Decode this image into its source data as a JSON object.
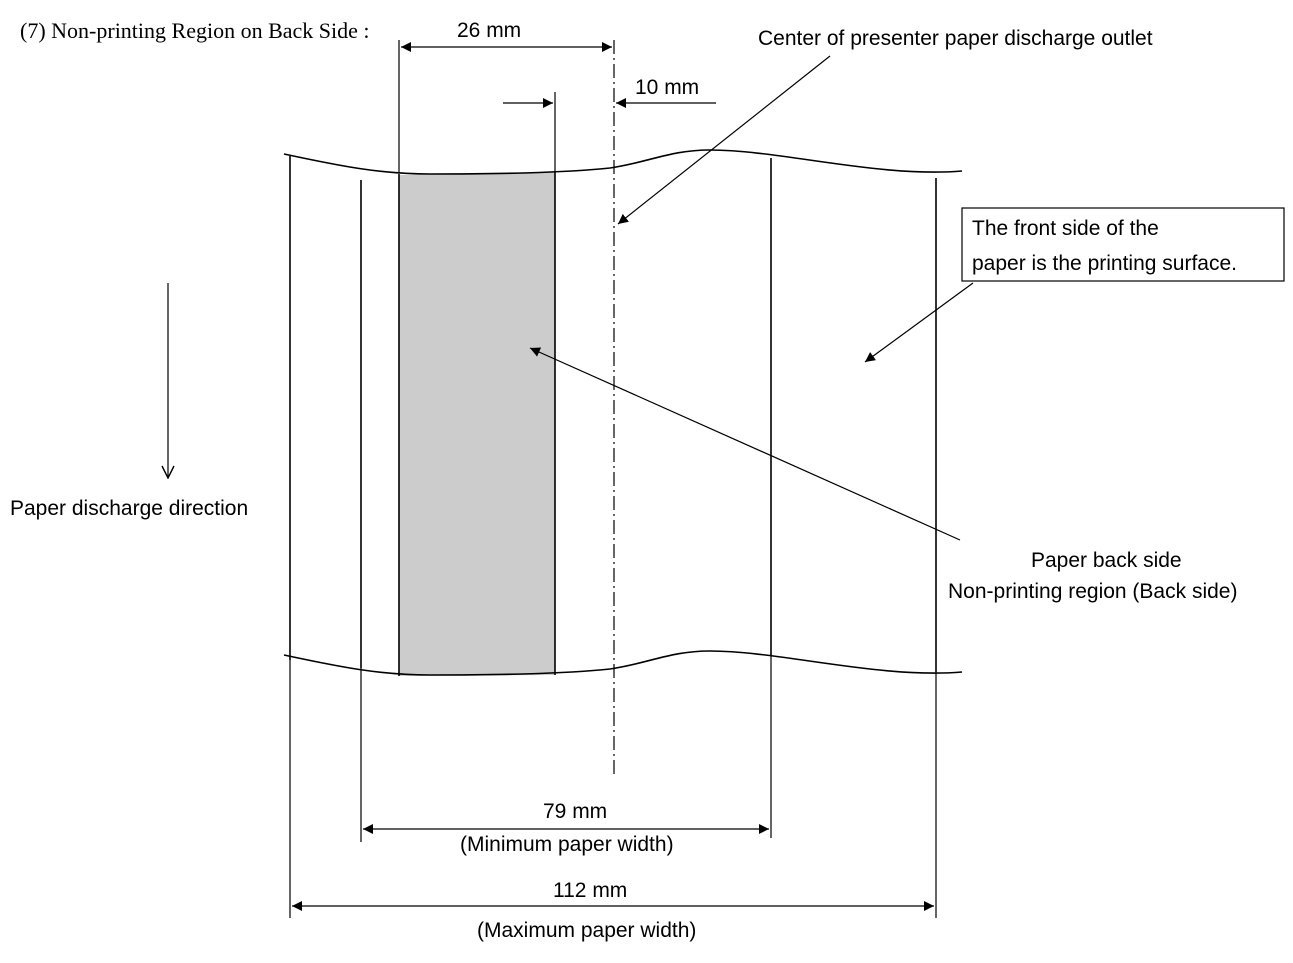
{
  "title": "(7)  Non-printing Region on Back Side :",
  "labels": {
    "dim_26": "26 mm",
    "dim_10": "10 mm",
    "center_outlet": "Center of presenter paper discharge outlet",
    "front_side_line1": "The front side of the",
    "front_side_line2": "paper is the printing surface.",
    "discharge_direction": "Paper discharge direction",
    "back_side_line1": "Paper back side",
    "back_side_line2": "Non-printing region (Back side)",
    "dim_79": "79 mm",
    "min_width": "(Minimum paper width)",
    "dim_112": "112 mm",
    "max_width": "(Maximum paper width)"
  },
  "colors": {
    "shaded_region": "#cccccc",
    "line": "#000000"
  }
}
